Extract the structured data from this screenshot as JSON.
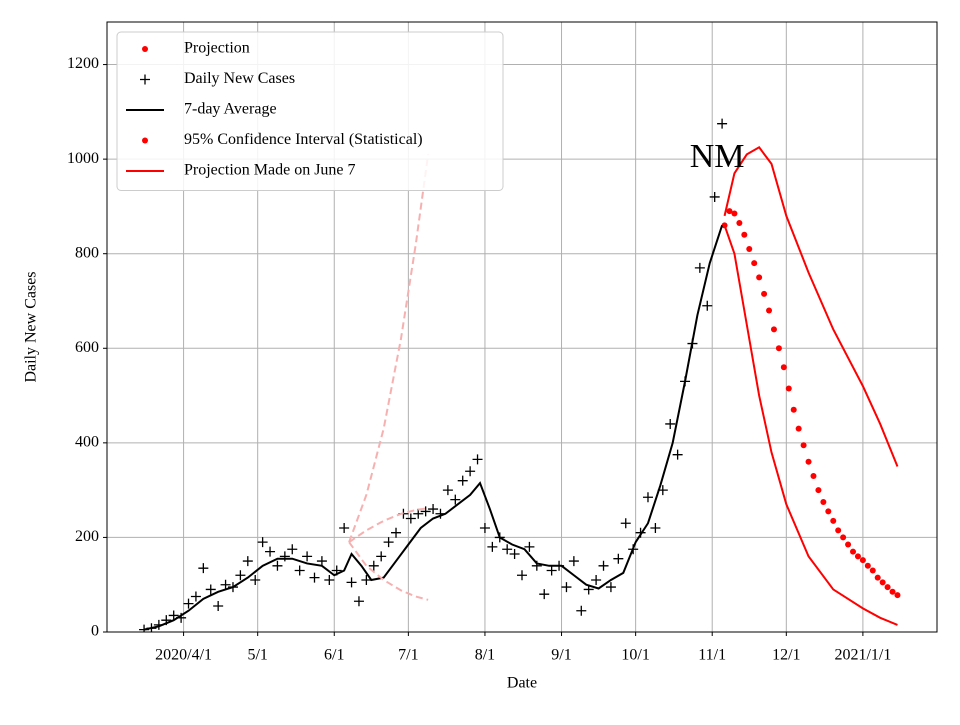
{
  "chart_data": {
    "type": "line",
    "xlabel": "Date",
    "ylabel": "Daily New Cases",
    "xlim": [
      "2020-03-01",
      "2021-01-31"
    ],
    "xticks": [
      {
        "value": "2020-04-01",
        "label": "2020/4/1"
      },
      {
        "value": "2020-05-01",
        "label": "5/1"
      },
      {
        "value": "2020-06-01",
        "label": "6/1"
      },
      {
        "value": "2020-07-01",
        "label": "7/1"
      },
      {
        "value": "2020-08-01",
        "label": "8/1"
      },
      {
        "value": "2020-09-01",
        "label": "9/1"
      },
      {
        "value": "2020-10-01",
        "label": "10/1"
      },
      {
        "value": "2020-11-01",
        "label": "11/1"
      },
      {
        "value": "2020-12-01",
        "label": "12/1"
      },
      {
        "value": "2021-01-01",
        "label": "2021/1/1"
      }
    ],
    "ylim": [
      0,
      1290
    ],
    "yticks": [
      0,
      200,
      400,
      600,
      800,
      1000,
      1200
    ],
    "grid": true,
    "legend": "upper left",
    "annotations": [
      {
        "text": "NM",
        "x": "2020-11-03",
        "y": 1000
      }
    ],
    "series": [
      {
        "name": "Projection",
        "style": "dot",
        "color": "#ff0000",
        "x": [
          "2020-11-06",
          "2020-11-08",
          "2020-11-10",
          "2020-11-12",
          "2020-11-14",
          "2020-11-16",
          "2020-11-18",
          "2020-11-20",
          "2020-11-22",
          "2020-11-24",
          "2020-11-26",
          "2020-11-28",
          "2020-11-30",
          "2020-12-02",
          "2020-12-04",
          "2020-12-06",
          "2020-12-08",
          "2020-12-10",
          "2020-12-12",
          "2020-12-14",
          "2020-12-16",
          "2020-12-18",
          "2020-12-20",
          "2020-12-22",
          "2020-12-24",
          "2020-12-26",
          "2020-12-28",
          "2020-12-30",
          "2021-01-01",
          "2021-01-03",
          "2021-01-05",
          "2021-01-07",
          "2021-01-09",
          "2021-01-11",
          "2021-01-13",
          "2021-01-15"
        ],
        "values": [
          860,
          890,
          885,
          865,
          840,
          810,
          780,
          750,
          715,
          680,
          640,
          600,
          560,
          515,
          470,
          430,
          395,
          360,
          330,
          300,
          275,
          255,
          235,
          215,
          200,
          185,
          170,
          160,
          152,
          140,
          130,
          115,
          105,
          95,
          85,
          78
        ]
      },
      {
        "name": "Daily New Cases",
        "style": "plus",
        "color": "#000000",
        "x": [
          "2020-03-16",
          "2020-03-19",
          "2020-03-22",
          "2020-03-25",
          "2020-03-28",
          "2020-03-31",
          "2020-04-03",
          "2020-04-06",
          "2020-04-09",
          "2020-04-12",
          "2020-04-15",
          "2020-04-18",
          "2020-04-21",
          "2020-04-24",
          "2020-04-27",
          "2020-04-30",
          "2020-05-03",
          "2020-05-06",
          "2020-05-09",
          "2020-05-12",
          "2020-05-15",
          "2020-05-18",
          "2020-05-21",
          "2020-05-24",
          "2020-05-27",
          "2020-05-30",
          "2020-06-02",
          "2020-06-05",
          "2020-06-08",
          "2020-06-11",
          "2020-06-14",
          "2020-06-17",
          "2020-06-20",
          "2020-06-23",
          "2020-06-26",
          "2020-06-29",
          "2020-07-02",
          "2020-07-05",
          "2020-07-08",
          "2020-07-11",
          "2020-07-14",
          "2020-07-17",
          "2020-07-20",
          "2020-07-23",
          "2020-07-26",
          "2020-07-29",
          "2020-08-01",
          "2020-08-04",
          "2020-08-07",
          "2020-08-10",
          "2020-08-13",
          "2020-08-16",
          "2020-08-19",
          "2020-08-22",
          "2020-08-25",
          "2020-08-28",
          "2020-08-31",
          "2020-09-03",
          "2020-09-06",
          "2020-09-09",
          "2020-09-12",
          "2020-09-15",
          "2020-09-18",
          "2020-09-21",
          "2020-09-24",
          "2020-09-27",
          "2020-09-30",
          "2020-10-03",
          "2020-10-06",
          "2020-10-09",
          "2020-10-12",
          "2020-10-15",
          "2020-10-18",
          "2020-10-21",
          "2020-10-24",
          "2020-10-27",
          "2020-10-30",
          "2020-11-02",
          "2020-11-05"
        ],
        "values": [
          5,
          8,
          15,
          25,
          35,
          30,
          60,
          75,
          135,
          90,
          55,
          100,
          95,
          120,
          150,
          110,
          190,
          170,
          140,
          160,
          175,
          130,
          160,
          115,
          150,
          110,
          130,
          220,
          105,
          65,
          110,
          140,
          160,
          190,
          210,
          250,
          240,
          250,
          255,
          260,
          250,
          300,
          280,
          320,
          340,
          365,
          220,
          180,
          200,
          175,
          165,
          120,
          180,
          140,
          80,
          130,
          140,
          95,
          150,
          45,
          90,
          110,
          140,
          95,
          155,
          230,
          175,
          210,
          285,
          220,
          300,
          440,
          375,
          530,
          610,
          770,
          690,
          920,
          1075
        ]
      },
      {
        "name": "7-day Average",
        "style": "line",
        "color": "#000000",
        "x": [
          "2020-03-16",
          "2020-03-22",
          "2020-03-28",
          "2020-04-03",
          "2020-04-09",
          "2020-04-15",
          "2020-04-21",
          "2020-04-27",
          "2020-05-03",
          "2020-05-09",
          "2020-05-15",
          "2020-05-21",
          "2020-05-27",
          "2020-06-01",
          "2020-06-05",
          "2020-06-08",
          "2020-06-12",
          "2020-06-16",
          "2020-06-21",
          "2020-06-26",
          "2020-07-01",
          "2020-07-06",
          "2020-07-11",
          "2020-07-16",
          "2020-07-21",
          "2020-07-26",
          "2020-07-30",
          "2020-08-03",
          "2020-08-07",
          "2020-08-12",
          "2020-08-17",
          "2020-08-22",
          "2020-08-27",
          "2020-09-01",
          "2020-09-06",
          "2020-09-11",
          "2020-09-16",
          "2020-09-21",
          "2020-09-26",
          "2020-10-01",
          "2020-10-06",
          "2020-10-11",
          "2020-10-16",
          "2020-10-21",
          "2020-10-26",
          "2020-10-31",
          "2020-11-05"
        ],
        "values": [
          5,
          12,
          25,
          45,
          70,
          85,
          95,
          115,
          140,
          155,
          155,
          145,
          140,
          120,
          130,
          165,
          140,
          110,
          115,
          150,
          185,
          220,
          240,
          250,
          270,
          290,
          315,
          260,
          200,
          185,
          175,
          145,
          140,
          140,
          120,
          100,
          92,
          110,
          125,
          190,
          230,
          310,
          400,
          530,
          670,
          780,
          860
        ]
      },
      {
        "name": "95% Confidence Interval (Statistical)",
        "style": "dot",
        "color": "#ff0000",
        "line_color": "#ff0000",
        "x": [
          "2020-11-06",
          "2020-11-10",
          "2020-11-15",
          "2020-11-20",
          "2020-11-25",
          "2020-12-01",
          "2020-12-10",
          "2020-12-20",
          "2021-01-01",
          "2021-01-08",
          "2021-01-15"
        ],
        "upper": [
          880,
          970,
          1010,
          1025,
          990,
          880,
          760,
          640,
          520,
          440,
          350
        ],
        "lower": [
          860,
          800,
          650,
          500,
          380,
          270,
          160,
          90,
          50,
          30,
          15
        ]
      },
      {
        "name": "Projection Made on June 7",
        "style": "line",
        "color": "#ff0000",
        "line_color": "#f7b0b0",
        "dashed": true,
        "x": [
          "2020-06-07",
          "2020-06-14",
          "2020-06-21",
          "2020-06-28",
          "2020-07-04",
          "2020-07-09"
        ],
        "values": [
          190,
          215,
          235,
          250,
          258,
          262
        ],
        "upper": [
          190,
          290,
          430,
          620,
          820,
          1010
        ],
        "lower": [
          190,
          140,
          110,
          88,
          75,
          68
        ]
      }
    ]
  }
}
